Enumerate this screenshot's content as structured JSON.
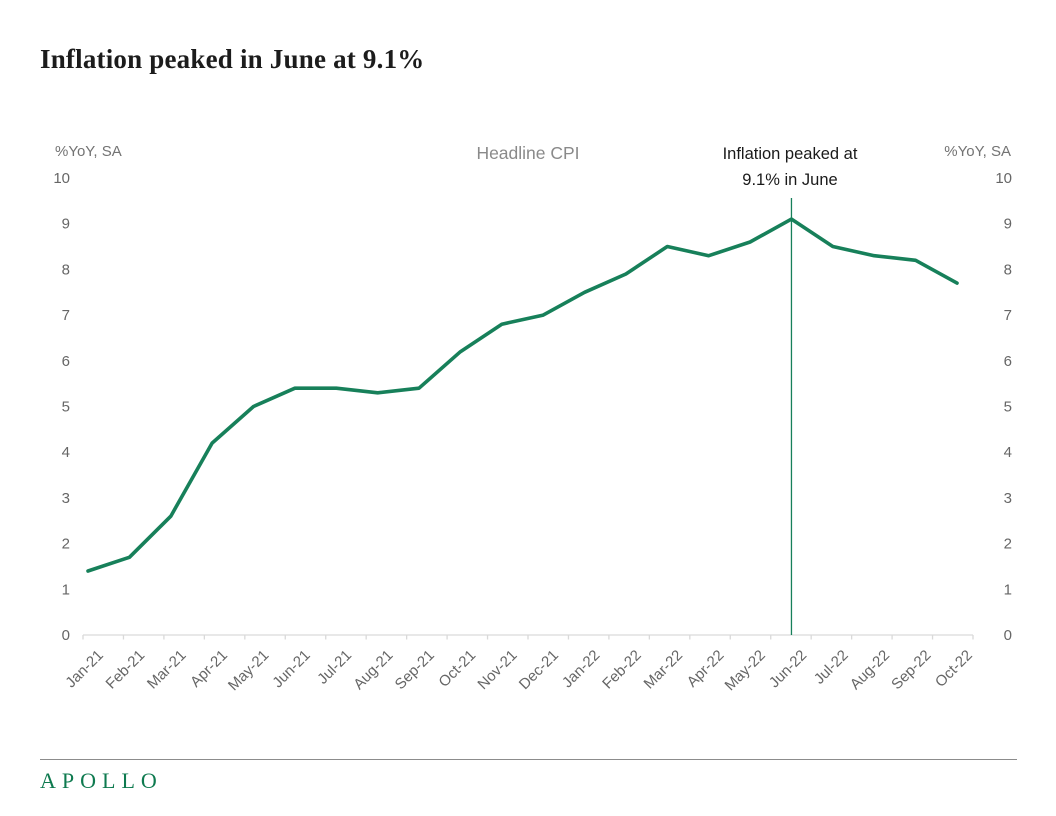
{
  "page_title": "Inflation peaked in June at 9.1%",
  "chart_data": {
    "type": "line",
    "title": "Headline CPI",
    "axis_label_left": "%YoY, SA",
    "axis_label_right": "%YoY, SA",
    "categories": [
      "Jan-21",
      "Feb-21",
      "Mar-21",
      "Apr-21",
      "May-21",
      "Jun-21",
      "Jul-21",
      "Aug-21",
      "Sep-21",
      "Oct-21",
      "Nov-21",
      "Dec-21",
      "Jan-22",
      "Feb-22",
      "Mar-22",
      "Apr-22",
      "May-22",
      "Jun-22",
      "Jul-22",
      "Aug-22",
      "Sep-22",
      "Oct-22"
    ],
    "series": [
      {
        "name": "Headline CPI",
        "values": [
          1.4,
          1.7,
          2.6,
          4.2,
          5.0,
          5.4,
          5.4,
          5.3,
          5.4,
          6.2,
          6.8,
          7.0,
          7.5,
          7.9,
          8.5,
          8.3,
          8.6,
          9.1,
          8.5,
          8.3,
          8.2,
          7.7
        ]
      }
    ],
    "ylim": [
      0,
      10
    ],
    "yticks": [
      0,
      1,
      2,
      3,
      4,
      5,
      6,
      7,
      8,
      9,
      10
    ],
    "grid": false,
    "legend_position": "none",
    "dual_axis_labels": true,
    "annotation": {
      "text_line1": "Inflation peaked at",
      "text_line2": "9.1% in June",
      "category": "Jun-22",
      "value": 9.1
    },
    "line_color": "#17805A"
  },
  "colors": {
    "accent_green": "#17805A",
    "title_text": "#1c1c1c",
    "axis_line": "#d9d9d9",
    "tick_text": "#666666",
    "caption_text": "#737373",
    "chart_title_text": "#8a8a8a",
    "divider": "#8c8c8c",
    "logo_green": "#0e7a4f"
  },
  "footer": {
    "logo_text": "APOLLO"
  }
}
